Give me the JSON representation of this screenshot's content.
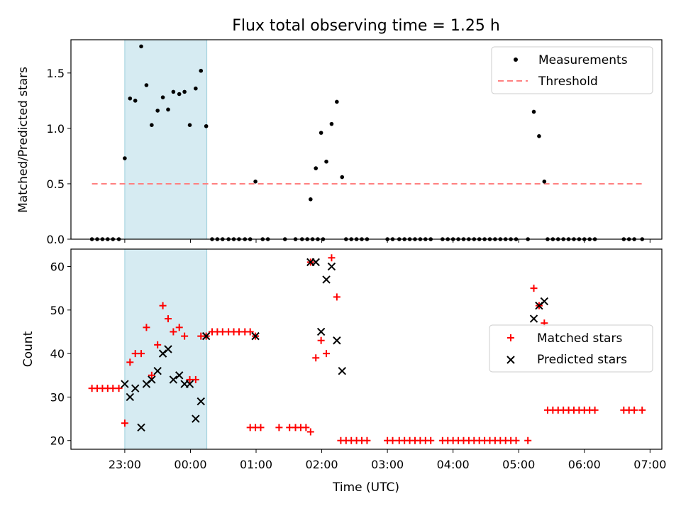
{
  "chart_data": [
    {
      "type": "scatter",
      "title": "Flux total observing time = 1.25 h",
      "xlabel": "",
      "ylabel": "Matched/Predicted stars",
      "xlim": [
        -0.82,
        8.18
      ],
      "ylim": [
        0,
        1.8
      ],
      "x_is_hours_since": "23:00 UTC",
      "yticks": [
        0.0,
        0.5,
        1.0,
        1.5
      ],
      "ytick_labels": [
        "0.0",
        "0.5",
        "1.0",
        "1.5"
      ],
      "shaded_interval": [
        0.0,
        1.25
      ],
      "legend": "top-right",
      "legend_entries": [
        "Measurements",
        "Threshold"
      ],
      "threshold": {
        "name": "Threshold",
        "value": 0.5,
        "x": [
          -0.5,
          7.9
        ],
        "color": "#ff8080"
      },
      "series": [
        {
          "name": "Measurements",
          "color": "#000000",
          "points": [
            [
              -0.5,
              0
            ],
            [
              -0.42,
              0
            ],
            [
              -0.34,
              0
            ],
            [
              -0.26,
              0
            ],
            [
              -0.18,
              0
            ],
            [
              -0.09,
              0
            ],
            [
              0.0,
              0.73
            ],
            [
              0.08,
              1.27
            ],
            [
              0.16,
              1.25
            ],
            [
              0.25,
              1.74
            ],
            [
              0.33,
              1.39
            ],
            [
              0.41,
              1.03
            ],
            [
              0.5,
              1.16
            ],
            [
              0.58,
              1.28
            ],
            [
              0.66,
              1.17
            ],
            [
              0.74,
              1.33
            ],
            [
              0.83,
              1.31
            ],
            [
              0.91,
              1.33
            ],
            [
              0.99,
              1.03
            ],
            [
              1.08,
              1.36
            ],
            [
              1.16,
              1.52
            ],
            [
              1.24,
              1.02
            ],
            [
              1.33,
              0
            ],
            [
              1.41,
              0
            ],
            [
              1.49,
              0
            ],
            [
              1.58,
              0
            ],
            [
              1.66,
              0
            ],
            [
              1.74,
              0
            ],
            [
              1.83,
              0
            ],
            [
              1.91,
              0
            ],
            [
              1.99,
              0.52
            ],
            [
              2.1,
              0
            ],
            [
              2.18,
              0
            ],
            [
              2.44,
              0
            ],
            [
              2.6,
              0
            ],
            [
              2.7,
              0
            ],
            [
              2.78,
              0
            ],
            [
              2.86,
              0
            ],
            [
              2.94,
              0
            ],
            [
              3.02,
              0
            ],
            [
              2.83,
              0.36
            ],
            [
              2.91,
              0.64
            ],
            [
              2.99,
              0.96
            ],
            [
              3.07,
              0.7
            ],
            [
              3.15,
              1.04
            ],
            [
              3.23,
              1.24
            ],
            [
              3.31,
              0.56
            ],
            [
              3.37,
              0
            ],
            [
              3.45,
              0
            ],
            [
              3.53,
              0
            ],
            [
              3.61,
              0
            ],
            [
              3.69,
              0
            ],
            [
              4.0,
              0
            ],
            [
              4.08,
              0
            ],
            [
              4.18,
              0
            ],
            [
              4.26,
              0
            ],
            [
              4.34,
              0
            ],
            [
              4.42,
              0
            ],
            [
              4.5,
              0
            ],
            [
              4.58,
              0
            ],
            [
              4.66,
              0
            ],
            [
              4.84,
              0
            ],
            [
              4.92,
              0
            ],
            [
              5.0,
              0
            ],
            [
              5.08,
              0
            ],
            [
              5.16,
              0
            ],
            [
              5.24,
              0
            ],
            [
              5.32,
              0
            ],
            [
              5.4,
              0
            ],
            [
              5.48,
              0
            ],
            [
              5.56,
              0
            ],
            [
              5.64,
              0
            ],
            [
              5.72,
              0
            ],
            [
              5.8,
              0
            ],
            [
              5.88,
              0
            ],
            [
              5.96,
              0
            ],
            [
              6.14,
              0
            ],
            [
              6.23,
              1.15
            ],
            [
              6.31,
              0.93
            ],
            [
              6.39,
              0.52
            ],
            [
              6.44,
              0
            ],
            [
              6.52,
              0
            ],
            [
              6.6,
              0
            ],
            [
              6.68,
              0
            ],
            [
              6.76,
              0
            ],
            [
              6.84,
              0
            ],
            [
              6.92,
              0
            ],
            [
              7.0,
              0
            ],
            [
              7.08,
              0
            ],
            [
              7.16,
              0
            ],
            [
              7.6,
              0
            ],
            [
              7.68,
              0
            ],
            [
              7.76,
              0
            ],
            [
              7.88,
              0
            ]
          ]
        }
      ]
    },
    {
      "type": "scatter",
      "title": "",
      "xlabel": "Time (UTC)",
      "ylabel": "Count",
      "xlim": [
        -0.82,
        8.18
      ],
      "ylim": [
        18,
        64
      ],
      "x_is_hours_since": "23:00 UTC",
      "xticks": [
        0,
        1,
        2,
        3,
        4,
        5,
        6,
        7,
        8
      ],
      "xtick_labels": [
        "23:00",
        "00:00",
        "01:00",
        "02:00",
        "03:00",
        "04:00",
        "05:00",
        "06:00",
        "07:00"
      ],
      "yticks": [
        20,
        30,
        40,
        50,
        60
      ],
      "ytick_labels": [
        "20",
        "30",
        "40",
        "50",
        "60"
      ],
      "shaded_interval": [
        0.0,
        1.25
      ],
      "legend": "center-right",
      "legend_entries": [
        "Matched stars",
        "Predicted stars"
      ],
      "series": [
        {
          "name": "Matched stars",
          "marker": "+",
          "color": "#ff0000",
          "points": [
            [
              -0.5,
              32
            ],
            [
              -0.42,
              32
            ],
            [
              -0.34,
              32
            ],
            [
              -0.26,
              32
            ],
            [
              -0.18,
              32
            ],
            [
              -0.09,
              32
            ],
            [
              0.0,
              24
            ],
            [
              0.08,
              38
            ],
            [
              0.16,
              40
            ],
            [
              0.25,
              40
            ],
            [
              0.33,
              46
            ],
            [
              0.41,
              35
            ],
            [
              0.5,
              42
            ],
            [
              0.58,
              51
            ],
            [
              0.66,
              48
            ],
            [
              0.74,
              45
            ],
            [
              0.83,
              46
            ],
            [
              0.91,
              44
            ],
            [
              0.99,
              34
            ],
            [
              1.08,
              34
            ],
            [
              1.16,
              44
            ],
            [
              1.24,
              44
            ],
            [
              1.33,
              45
            ],
            [
              1.41,
              45
            ],
            [
              1.49,
              45
            ],
            [
              1.58,
              45
            ],
            [
              1.66,
              45
            ],
            [
              1.74,
              45
            ],
            [
              1.83,
              45
            ],
            [
              1.91,
              45
            ],
            [
              1.99,
              44
            ],
            [
              1.91,
              23
            ],
            [
              1.99,
              23
            ],
            [
              2.07,
              23
            ],
            [
              2.35,
              23
            ],
            [
              2.51,
              23
            ],
            [
              2.6,
              23
            ],
            [
              2.68,
              23
            ],
            [
              2.76,
              23
            ],
            [
              2.83,
              22
            ],
            [
              2.83,
              61
            ],
            [
              2.91,
              39
            ],
            [
              2.99,
              43
            ],
            [
              3.07,
              40
            ],
            [
              3.15,
              62
            ],
            [
              3.23,
              53
            ],
            [
              3.29,
              20
            ],
            [
              3.37,
              20
            ],
            [
              3.45,
              20
            ],
            [
              3.53,
              20
            ],
            [
              3.61,
              20
            ],
            [
              3.69,
              20
            ],
            [
              4.0,
              20
            ],
            [
              4.08,
              20
            ],
            [
              4.18,
              20
            ],
            [
              4.26,
              20
            ],
            [
              4.34,
              20
            ],
            [
              4.42,
              20
            ],
            [
              4.5,
              20
            ],
            [
              4.58,
              20
            ],
            [
              4.66,
              20
            ],
            [
              4.84,
              20
            ],
            [
              4.92,
              20
            ],
            [
              5.0,
              20
            ],
            [
              5.08,
              20
            ],
            [
              5.16,
              20
            ],
            [
              5.24,
              20
            ],
            [
              5.32,
              20
            ],
            [
              5.4,
              20
            ],
            [
              5.48,
              20
            ],
            [
              5.56,
              20
            ],
            [
              5.64,
              20
            ],
            [
              5.72,
              20
            ],
            [
              5.8,
              20
            ],
            [
              5.88,
              20
            ],
            [
              5.96,
              20
            ],
            [
              6.14,
              20
            ],
            [
              6.23,
              55
            ],
            [
              6.31,
              51
            ],
            [
              6.39,
              47
            ],
            [
              6.44,
              27
            ],
            [
              6.52,
              27
            ],
            [
              6.6,
              27
            ],
            [
              6.68,
              27
            ],
            [
              6.76,
              27
            ],
            [
              6.84,
              27
            ],
            [
              6.92,
              27
            ],
            [
              7.0,
              27
            ],
            [
              7.08,
              27
            ],
            [
              7.16,
              27
            ],
            [
              7.6,
              27
            ],
            [
              7.68,
              27
            ],
            [
              7.76,
              27
            ],
            [
              7.88,
              27
            ]
          ]
        },
        {
          "name": "Predicted stars",
          "marker": "x",
          "color": "#000000",
          "points": [
            [
              0.0,
              33
            ],
            [
              0.08,
              30
            ],
            [
              0.16,
              32
            ],
            [
              0.25,
              23
            ],
            [
              0.33,
              33
            ],
            [
              0.41,
              34
            ],
            [
              0.5,
              36
            ],
            [
              0.58,
              40
            ],
            [
              0.66,
              41
            ],
            [
              0.74,
              34
            ],
            [
              0.83,
              35
            ],
            [
              0.91,
              33
            ],
            [
              0.99,
              33
            ],
            [
              1.08,
              25
            ],
            [
              1.16,
              29
            ],
            [
              1.24,
              44
            ],
            [
              1.99,
              44
            ],
            [
              2.83,
              61
            ],
            [
              2.91,
              61
            ],
            [
              2.99,
              45
            ],
            [
              3.07,
              57
            ],
            [
              3.15,
              60
            ],
            [
              3.23,
              43
            ],
            [
              3.31,
              36
            ],
            [
              6.23,
              48
            ],
            [
              6.31,
              51
            ],
            [
              6.39,
              52
            ]
          ]
        }
      ]
    }
  ]
}
